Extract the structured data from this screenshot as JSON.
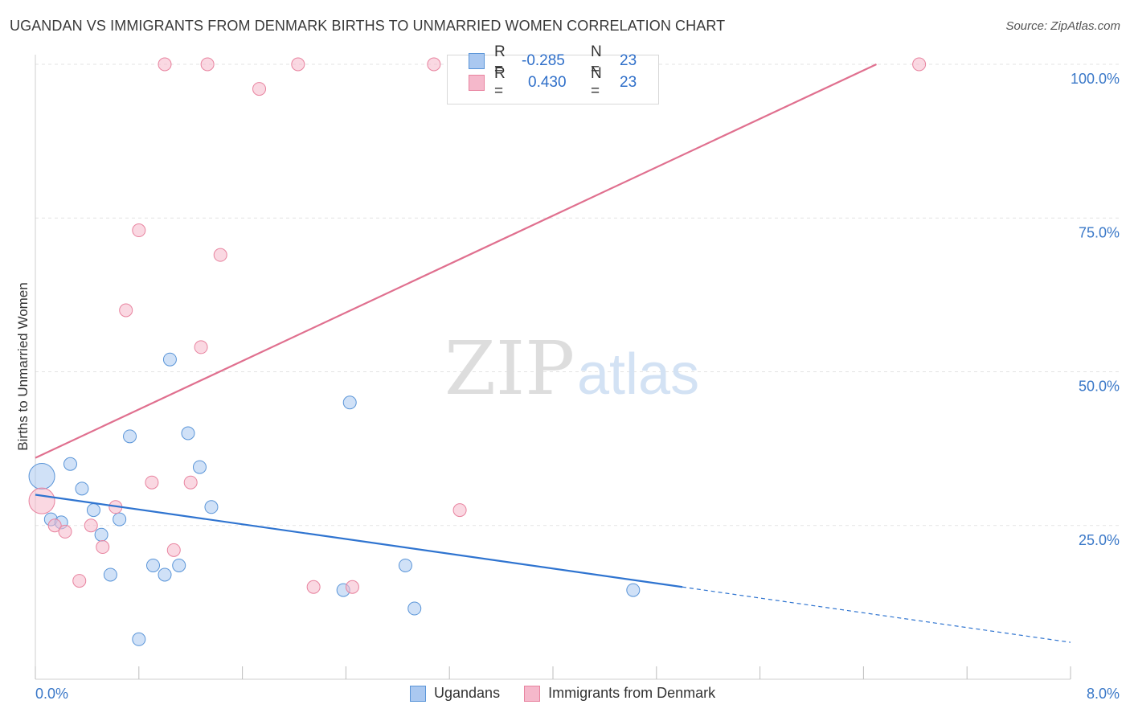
{
  "title": "UGANDAN VS IMMIGRANTS FROM DENMARK BIRTHS TO UNMARRIED WOMEN CORRELATION CHART",
  "source": "Source: ZipAtlas.com",
  "watermark": {
    "zip": "ZIP",
    "atlas": "atlas"
  },
  "stats": {
    "r_label": "R =",
    "n_label": "N =",
    "series": [
      {
        "r": "-0.285",
        "n": "23",
        "color": "#aac8f0"
      },
      {
        "r": "0.430",
        "n": "23",
        "color": "#f5b8cb"
      }
    ]
  },
  "legend": [
    "Ugandans",
    "Immigrants from Denmark"
  ],
  "chart_data": {
    "type": "scatter",
    "title": "UGANDAN VS IMMIGRANTS FROM DENMARK BIRTHS TO UNMARRIED WOMEN CORRELATION CHART",
    "xlabel": "",
    "ylabel": "Births to Unmarried Women",
    "xlim": [
      0,
      8
    ],
    "ylim": [
      0,
      100
    ],
    "x_tick_labels": [
      "0.0%",
      "8.0%"
    ],
    "y_tick_labels": [
      "25.0%",
      "50.0%",
      "75.0%",
      "100.0%"
    ],
    "y_ticks": [
      25,
      50,
      75,
      100
    ],
    "grid": true,
    "legend_position": "bottom",
    "series": [
      {
        "name": "Ugandans",
        "color": "#aac8f0",
        "stroke": "#5a95d8",
        "line_color": "#2f74d0",
        "points": [
          {
            "x": 0.05,
            "y": 33.0,
            "big": true
          },
          {
            "x": 0.12,
            "y": 26.0
          },
          {
            "x": 0.2,
            "y": 25.5
          },
          {
            "x": 0.27,
            "y": 35.0
          },
          {
            "x": 0.36,
            "y": 31.0
          },
          {
            "x": 0.45,
            "y": 27.5
          },
          {
            "x": 0.51,
            "y": 23.5
          },
          {
            "x": 0.58,
            "y": 17.0
          },
          {
            "x": 0.65,
            "y": 26.0
          },
          {
            "x": 0.73,
            "y": 39.5
          },
          {
            "x": 0.8,
            "y": 6.5
          },
          {
            "x": 0.91,
            "y": 18.5
          },
          {
            "x": 1.0,
            "y": 17.0
          },
          {
            "x": 1.04,
            "y": 52.0
          },
          {
            "x": 1.11,
            "y": 18.5
          },
          {
            "x": 1.18,
            "y": 40.0
          },
          {
            "x": 1.27,
            "y": 34.5
          },
          {
            "x": 1.36,
            "y": 28.0
          },
          {
            "x": 2.38,
            "y": 14.5
          },
          {
            "x": 2.43,
            "y": 45.0
          },
          {
            "x": 2.86,
            "y": 18.5
          },
          {
            "x": 2.93,
            "y": 11.5
          },
          {
            "x": 4.62,
            "y": 14.5
          }
        ],
        "trend": {
          "x0": 0.0,
          "y0": 30.0,
          "x1": 5.0,
          "y1": 15.0,
          "x_dash_end": 8.0,
          "y_dash_end": 6.0
        }
      },
      {
        "name": "Immigrants from Denmark",
        "color": "#f5b8cb",
        "stroke": "#e8839f",
        "line_color": "#e0708f",
        "points": [
          {
            "x": 0.05,
            "y": 29.0,
            "big": true
          },
          {
            "x": 0.15,
            "y": 25.0
          },
          {
            "x": 0.23,
            "y": 24.0
          },
          {
            "x": 0.34,
            "y": 16.0
          },
          {
            "x": 0.43,
            "y": 25.0
          },
          {
            "x": 0.52,
            "y": 21.5
          },
          {
            "x": 0.62,
            "y": 28.0
          },
          {
            "x": 0.7,
            "y": 60.0
          },
          {
            "x": 0.8,
            "y": 73.0
          },
          {
            "x": 0.9,
            "y": 32.0
          },
          {
            "x": 1.0,
            "y": 100.0
          },
          {
            "x": 1.07,
            "y": 21.0
          },
          {
            "x": 1.2,
            "y": 32.0
          },
          {
            "x": 1.28,
            "y": 54.0
          },
          {
            "x": 1.33,
            "y": 100.0
          },
          {
            "x": 1.43,
            "y": 69.0
          },
          {
            "x": 1.73,
            "y": 96.0
          },
          {
            "x": 2.03,
            "y": 100.0
          },
          {
            "x": 2.15,
            "y": 15.0
          },
          {
            "x": 2.45,
            "y": 15.0
          },
          {
            "x": 3.08,
            "y": 100.0
          },
          {
            "x": 3.28,
            "y": 27.5
          },
          {
            "x": 6.83,
            "y": 100.0
          }
        ],
        "trend": {
          "x0": 0.0,
          "y0": 36.0,
          "x1": 6.5,
          "y1": 100.0
        }
      }
    ]
  }
}
